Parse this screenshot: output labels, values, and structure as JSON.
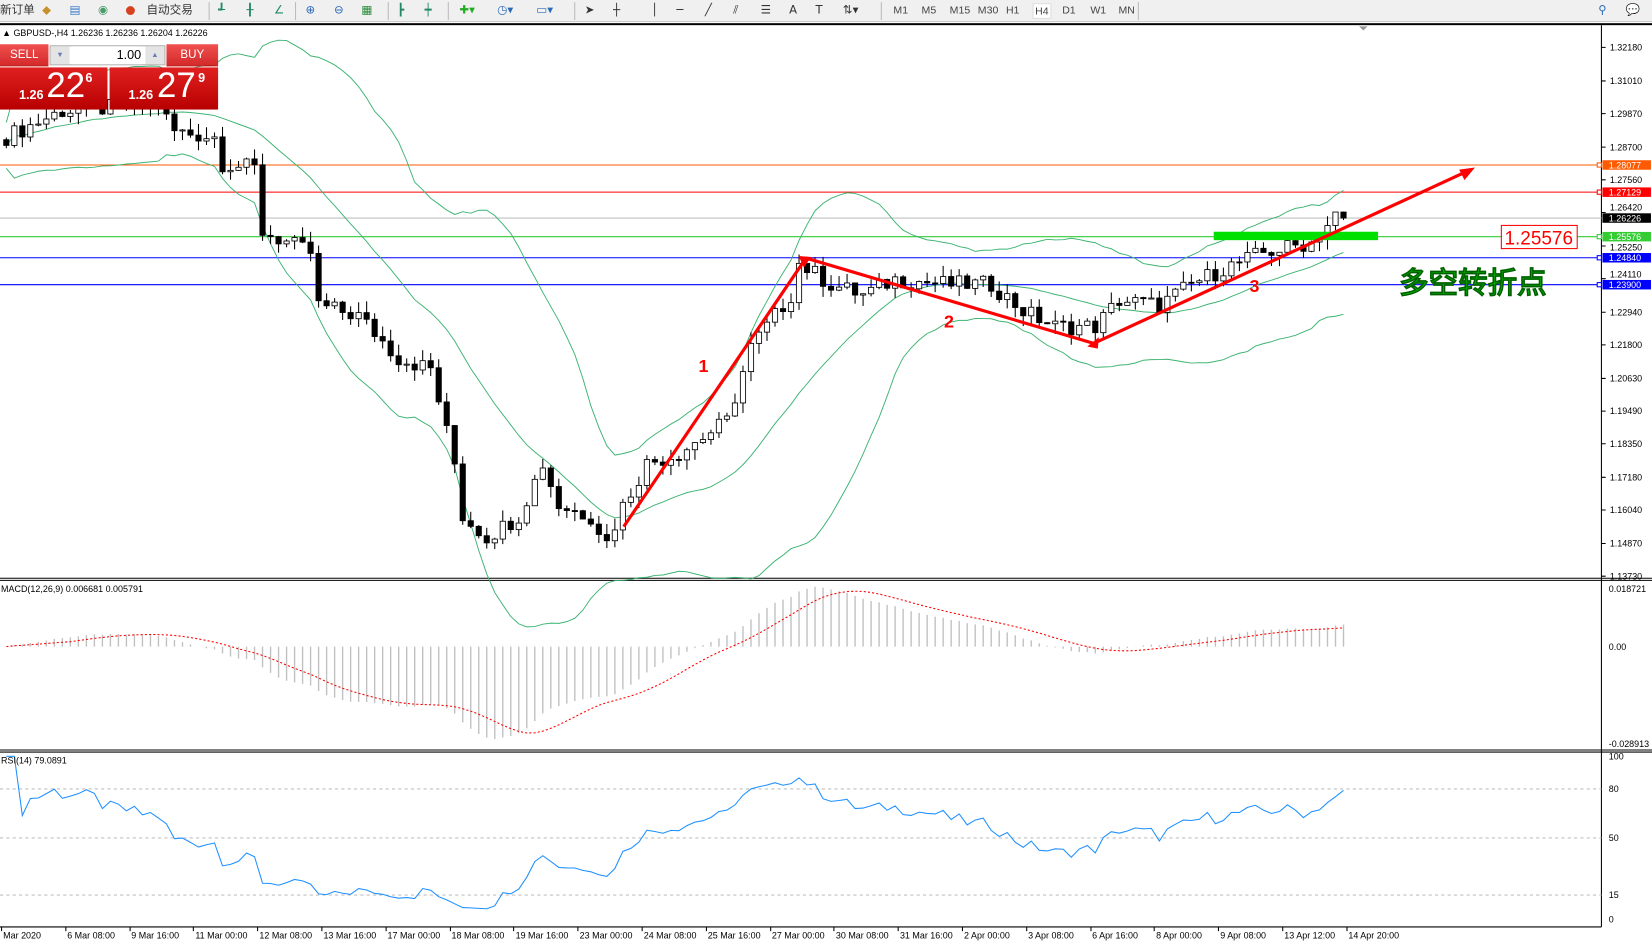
{
  "toolbar": {
    "new_order_label": "新订单",
    "auto_trading_label": "自动交易",
    "icons": [
      "new-order-icon",
      "strategy-tester-icon",
      "market-watch-icon",
      "signals-icon",
      "auto-trading-icon",
      "bar-chart-icon",
      "candlestick-icon",
      "line-chart-icon",
      "zoom-in-icon",
      "zoom-out-icon",
      "tile-windows-icon",
      "auto-scroll-icon",
      "chart-shift-icon",
      "indicators-icon",
      "periods-icon",
      "templates-icon",
      "cursor-icon",
      "crosshair-icon",
      "vertical-line-icon",
      "horizontal-line-icon",
      "trendline-icon",
      "equidistant-channel-icon",
      "fibonacci-icon",
      "text-icon",
      "text-label-icon",
      "arrows-icon",
      "search-icon",
      "chat-icon"
    ],
    "timeframes": [
      "M1",
      "M5",
      "M15",
      "M30",
      "H1",
      "H4",
      "D1",
      "W1",
      "MN"
    ],
    "active_timeframe": "H4"
  },
  "symbol_header": "GBPUSD-,H4  1.26236 1.26236 1.26204 1.26226",
  "trade_panel": {
    "sell_label": "SELL",
    "buy_label": "BUY",
    "lot_value": "1.00",
    "sell_price": {
      "prefix": "1.26",
      "big": "22",
      "sup": "6"
    },
    "buy_price": {
      "prefix": "1.26",
      "big": "27",
      "sup": "9"
    }
  },
  "chart_data": {
    "type": "candlestick",
    "symbol": "GBPUSD-",
    "timeframe": "H4",
    "ylim": [
      1.1373,
      1.3218
    ],
    "price_ticks": [
      "1.32180",
      "1.31010",
      "1.29870",
      "1.28700",
      "1.27560",
      "1.26420",
      "1.25250",
      "1.24110",
      "1.22940",
      "1.21800",
      "1.20630",
      "1.19490",
      "1.18350",
      "1.17180",
      "1.16040",
      "1.14870",
      "1.13730"
    ],
    "bar_count": 168,
    "close_keypoints": [
      [
        0,
        1.2906
      ],
      [
        7,
        1.2997
      ],
      [
        19,
        1.3016
      ],
      [
        21,
        1.2924
      ],
      [
        26,
        1.2906
      ],
      [
        27,
        1.2814
      ],
      [
        31,
        1.2795
      ],
      [
        32,
        1.2575
      ],
      [
        38,
        1.2501
      ],
      [
        39,
        1.2318
      ],
      [
        44,
        1.2281
      ],
      [
        49,
        1.2134
      ],
      [
        53,
        1.2097
      ],
      [
        56,
        1.1766
      ],
      [
        57,
        1.1583
      ],
      [
        60,
        1.1509
      ],
      [
        64,
        1.1583
      ],
      [
        67,
        1.1766
      ],
      [
        69,
        1.1619
      ],
      [
        73,
        1.1583
      ],
      [
        75,
        1.1491
      ],
      [
        77,
        1.1619
      ],
      [
        80,
        1.1766
      ],
      [
        84,
        1.1803
      ],
      [
        86,
        1.184
      ],
      [
        90,
        1.1913
      ],
      [
        93,
        1.2171
      ],
      [
        96,
        1.2281
      ],
      [
        98,
        1.2354
      ],
      [
        99,
        1.2465
      ],
      [
        103,
        1.2391
      ],
      [
        107,
        1.2354
      ],
      [
        111,
        1.2409
      ],
      [
        118,
        1.2391
      ],
      [
        123,
        1.2391
      ],
      [
        127,
        1.2299
      ],
      [
        131,
        1.2244
      ],
      [
        136,
        1.2244
      ],
      [
        139,
        1.2336
      ],
      [
        144,
        1.2318
      ],
      [
        148,
        1.2391
      ],
      [
        152,
        1.2446
      ],
      [
        157,
        1.2501
      ],
      [
        163,
        1.2538
      ],
      [
        166,
        1.263
      ],
      [
        167,
        1.26226
      ]
    ],
    "last_ohlc": {
      "open": 1.26236,
      "high": 1.26236,
      "low": 1.26204,
      "close": 1.26226
    },
    "time_labels": [
      "Mar 2020",
      "6 Mar 08:00",
      "9 Mar 16:00",
      "11 Mar 00:00",
      "12 Mar 08:00",
      "13 Mar 16:00",
      "17 Mar 00:00",
      "18 Mar 08:00",
      "19 Mar 16:00",
      "23 Mar 00:00",
      "24 Mar 08:00",
      "25 Mar 16:00",
      "27 Mar 00:00",
      "30 Mar 08:00",
      "31 Mar 16:00",
      "2 Apr 00:00",
      "3 Apr 08:00",
      "6 Apr 16:00",
      "8 Apr 00:00",
      "9 Apr 08:00",
      "13 Apr 12:00",
      "14 Apr 20:00"
    ],
    "indicators": {
      "bollinger": {
        "period": 20,
        "deviation": 2,
        "color": "#3cb371"
      },
      "macd": {
        "label": "MACD(12,26,9) 0.006681 0.005791",
        "params": [
          12,
          26,
          9
        ],
        "ylim": [
          -0.028913,
          0.018721
        ],
        "ticks": [
          "0.018721",
          "0.00",
          "-0.028913"
        ],
        "signal_color": "#ff0000",
        "hist_color": "#c0c0c0"
      },
      "rsi": {
        "label": "RSI(14) 79.0891",
        "period": 14,
        "value": 79.0891,
        "levels": [
          80,
          50,
          15
        ],
        "ticks": [
          "100",
          "80",
          "50",
          "15",
          "0"
        ],
        "color": "#1e90ff"
      }
    },
    "horizontal_lines": [
      {
        "price": 1.28077,
        "label": "1.28077",
        "color": "#ff5a00"
      },
      {
        "price": 1.27129,
        "label": "1.27129",
        "color": "#ff0000"
      },
      {
        "price": 1.25576,
        "label": "1.25576",
        "color": "#33cc33"
      },
      {
        "price": 1.2484,
        "label": "1.24840",
        "color": "#0000ff"
      },
      {
        "price": 1.239,
        "label": "1.23900",
        "color": "#0000ff"
      }
    ],
    "current_price": {
      "price": 1.26226,
      "label": "1.26226",
      "color": "#000000"
    },
    "annotations": {
      "wave_labels": [
        "1",
        "2",
        "3"
      ],
      "price_callout": "1.25576",
      "text": "多空转折点",
      "trend_color": "#ff0000",
      "zone_color": "#00e000"
    }
  }
}
